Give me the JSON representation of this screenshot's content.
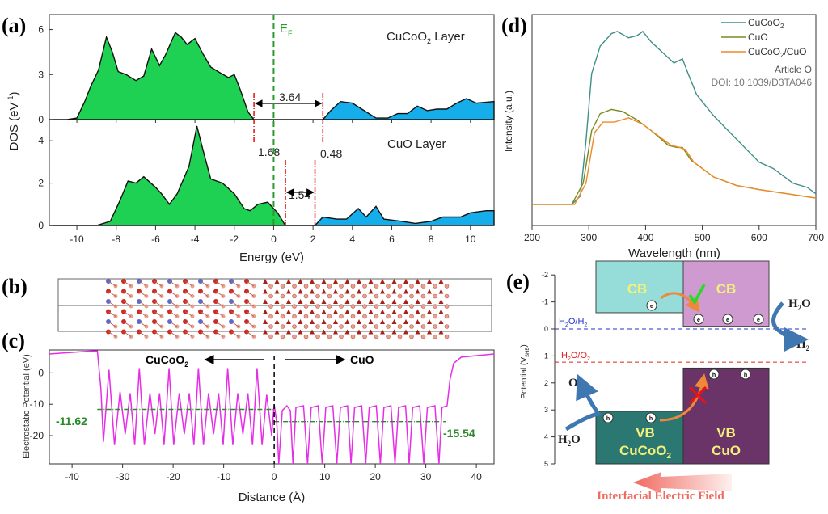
{
  "panel_labels": {
    "a": "(a)",
    "b": "(b)",
    "c": "(c)",
    "d": "(d)",
    "e": "(e)"
  },
  "watermark": {
    "line1": "Article O",
    "line2": "DOI: 10.1039/D3TA046"
  },
  "chart_data": [
    {
      "id": "a",
      "type": "area",
      "xlabel": "Energy (eV)",
      "ylabel": "DOS (eV",
      "ylabel_sup": "-1",
      "ylabel_end": ")",
      "xlim": [
        -11.4,
        11.2
      ],
      "xticks": [
        -10,
        -8,
        -6,
        -4,
        -2,
        0,
        2,
        4,
        6,
        8,
        10
      ],
      "fermi_label": "E",
      "fermi_sub": "F",
      "colors": {
        "valence": "#1fd152",
        "conduction": "#16aeea",
        "fermi": "#2a9a2a",
        "gap_marker": "#e0201e"
      },
      "panels": [
        {
          "name": "CuCoO",
          "name_sub": "2",
          "name_end": " Layer",
          "ylim": [
            0,
            7
          ],
          "yticks": [
            0,
            3,
            6
          ],
          "valence": [
            [
              -11.4,
              0
            ],
            [
              -10.5,
              0
            ],
            [
              -10,
              0.1
            ],
            [
              -9.6,
              1.2
            ],
            [
              -9.3,
              2.2
            ],
            [
              -8.9,
              3.3
            ],
            [
              -8.5,
              5.5
            ],
            [
              -8.2,
              4.5
            ],
            [
              -7.9,
              3.2
            ],
            [
              -7.5,
              3.0
            ],
            [
              -7.0,
              2.6
            ],
            [
              -6.6,
              2.9
            ],
            [
              -6.2,
              4.7
            ],
            [
              -5.8,
              3.6
            ],
            [
              -5.5,
              4.3
            ],
            [
              -5.0,
              5.8
            ],
            [
              -4.7,
              5.5
            ],
            [
              -4.4,
              5.0
            ],
            [
              -4.0,
              5.4
            ],
            [
              -3.6,
              4.4
            ],
            [
              -3.2,
              3.5
            ],
            [
              -2.7,
              3.1
            ],
            [
              -2.3,
              2.8
            ],
            [
              -2.0,
              3.0
            ],
            [
              -1.7,
              2.0
            ],
            [
              -1.3,
              0.5
            ],
            [
              -1.0,
              0
            ],
            [
              2.5,
              0
            ]
          ],
          "conduction": [
            [
              2.5,
              0
            ],
            [
              2.9,
              0.6
            ],
            [
              3.4,
              1.2
            ],
            [
              4.0,
              1.1
            ],
            [
              4.6,
              0.6
            ],
            [
              5.2,
              0.1
            ],
            [
              5.8,
              0.1
            ],
            [
              6.3,
              0.4
            ],
            [
              6.8,
              0.4
            ],
            [
              7.3,
              0.9
            ],
            [
              7.8,
              0.6
            ],
            [
              8.3,
              0.7
            ],
            [
              8.8,
              0.7
            ],
            [
              9.3,
              1.1
            ],
            [
              9.8,
              1.4
            ],
            [
              10.3,
              1.1
            ],
            [
              11.2,
              1.2
            ]
          ],
          "gap": {
            "value": "3.64",
            "from": -1.0,
            "to": 2.5
          }
        },
        {
          "name": "CuO Layer",
          "ylim": [
            0,
            5
          ],
          "yticks": [
            0,
            2,
            4
          ],
          "valence": [
            [
              -11.4,
              0
            ],
            [
              -9,
              0
            ],
            [
              -8.3,
              0.2
            ],
            [
              -7.8,
              1.2
            ],
            [
              -7.4,
              2.1
            ],
            [
              -7.0,
              2.0
            ],
            [
              -6.6,
              2.3
            ],
            [
              -6.0,
              1.8
            ],
            [
              -5.7,
              1.5
            ],
            [
              -5.3,
              1.0
            ],
            [
              -4.9,
              1.5
            ],
            [
              -4.3,
              2.8
            ],
            [
              -3.9,
              4.7
            ],
            [
              -3.6,
              3.6
            ],
            [
              -3.2,
              2.2
            ],
            [
              -2.6,
              2.0
            ],
            [
              -2.0,
              1.5
            ],
            [
              -1.5,
              0.8
            ],
            [
              -1.2,
              0.7
            ],
            [
              -0.8,
              1.0
            ],
            [
              -0.3,
              1.1
            ],
            [
              0.2,
              0.6
            ],
            [
              0.6,
              0
            ],
            [
              2.1,
              0
            ]
          ],
          "conduction": [
            [
              2.1,
              0
            ],
            [
              2.5,
              0.4
            ],
            [
              3.2,
              0.3
            ],
            [
              3.7,
              0.3
            ],
            [
              4.3,
              0.8
            ],
            [
              4.7,
              0.4
            ],
            [
              5.2,
              0.9
            ],
            [
              5.6,
              0.3
            ],
            [
              6.5,
              0.2
            ],
            [
              7.2,
              0.1
            ],
            [
              8,
              0.2
            ],
            [
              8.6,
              0.4
            ],
            [
              9.5,
              0.4
            ],
            [
              10,
              0.6
            ],
            [
              10.8,
              0.7
            ],
            [
              11.2,
              0.7
            ]
          ],
          "gap": {
            "value": "1.54",
            "from": 0.6,
            "to": 2.1
          }
        }
      ],
      "offsets": [
        {
          "value": "1.68"
        },
        {
          "value": "0.48"
        }
      ]
    },
    {
      "id": "c",
      "type": "line",
      "xlabel": "Distance (Å)",
      "ylabel": "Electrostatic Potential (eV)",
      "xlim": [
        -44.5,
        43.5
      ],
      "ylim": [
        -29,
        7.3
      ],
      "xticks": [
        -40,
        -30,
        -20,
        -10,
        0,
        10,
        20,
        30,
        40
      ],
      "yticks": [
        0,
        -10,
        -20
      ],
      "color": "#e62ee6",
      "left_label": "CuCoO",
      "left_sub": "2",
      "right_label": "CuO",
      "averages": [
        {
          "value": -11.62,
          "label": "-11.62",
          "from": -35,
          "to": 0
        },
        {
          "value": -15.54,
          "label": "-15.54",
          "from": 0,
          "to": 34
        }
      ],
      "series": [
        [
          -44.5,
          6
        ],
        [
          -36,
          7
        ],
        [
          -35,
          7
        ],
        [
          -34.3,
          -5
        ],
        [
          -33.8,
          -22
        ],
        [
          -32.7,
          1
        ],
        [
          -31.6,
          -23
        ],
        [
          -30.5,
          -6
        ],
        [
          -29.5,
          -19.5
        ],
        [
          -28.5,
          -6.5
        ],
        [
          -27.6,
          -23
        ],
        [
          -26.7,
          1.5
        ],
        [
          -25.7,
          -23
        ],
        [
          -24.6,
          -6.5
        ],
        [
          -23.6,
          -19.5
        ],
        [
          -22.7,
          -6.5
        ],
        [
          -21.8,
          -23
        ],
        [
          -20.8,
          1.5
        ],
        [
          -19.9,
          -23
        ],
        [
          -18.8,
          -6.5
        ],
        [
          -17.8,
          -19.5
        ],
        [
          -16.8,
          -6.5
        ],
        [
          -15.9,
          -23
        ],
        [
          -15,
          1.5
        ],
        [
          -14,
          -23
        ],
        [
          -13,
          -6.5
        ],
        [
          -12,
          -19.5
        ],
        [
          -11,
          -6.5
        ],
        [
          -10.1,
          -23
        ],
        [
          -9.2,
          1.5
        ],
        [
          -8.2,
          -23
        ],
        [
          -7.2,
          -6.5
        ],
        [
          -6.2,
          -19.5
        ],
        [
          -5.2,
          -6.5
        ],
        [
          -4.3,
          -23
        ],
        [
          -3.4,
          1.5
        ],
        [
          -2.4,
          -23
        ],
        [
          -1.5,
          -7
        ],
        [
          -0.5,
          -20
        ],
        [
          0,
          -10
        ],
        [
          0.5,
          -16
        ],
        [
          0.9,
          -29
        ],
        [
          1.6,
          -12
        ],
        [
          2.5,
          -10.5
        ],
        [
          3.2,
          -12
        ],
        [
          3.7,
          -29
        ],
        [
          4.3,
          -11
        ],
        [
          5.8,
          -10.5
        ],
        [
          6.6,
          -29
        ],
        [
          7.3,
          -11
        ],
        [
          8.7,
          -10.5
        ],
        [
          9.5,
          -29
        ],
        [
          10.2,
          -11
        ],
        [
          11.6,
          -10.5
        ],
        [
          12.4,
          -29
        ],
        [
          13.1,
          -11
        ],
        [
          14.5,
          -10.5
        ],
        [
          15.2,
          -29
        ],
        [
          15.9,
          -11
        ],
        [
          17.3,
          -10.5
        ],
        [
          18.1,
          -29
        ],
        [
          18.8,
          -11
        ],
        [
          20.2,
          -10.5
        ],
        [
          21,
          -29
        ],
        [
          21.7,
          -11
        ],
        [
          23.1,
          -10.5
        ],
        [
          23.9,
          -29
        ],
        [
          24.6,
          -11
        ],
        [
          26,
          -10.5
        ],
        [
          26.7,
          -29
        ],
        [
          27.4,
          -11
        ],
        [
          28.8,
          -10.5
        ],
        [
          29.6,
          -29
        ],
        [
          30.3,
          -11
        ],
        [
          31.8,
          -10.5
        ],
        [
          32.6,
          -29
        ],
        [
          33.2,
          -11
        ],
        [
          34.2,
          -10.5
        ],
        [
          34.8,
          -2
        ],
        [
          35.5,
          3
        ],
        [
          37,
          5
        ],
        [
          43.5,
          6
        ]
      ]
    },
    {
      "id": "d",
      "type": "line",
      "xlabel": "Wavelength (nm)",
      "ylabel": "Intensity (a.u.)",
      "xlim": [
        200,
        700
      ],
      "ylim": [
        0,
        100
      ],
      "xticks": [
        200,
        300,
        400,
        500,
        600,
        700
      ],
      "legend": "top-right",
      "series": [
        {
          "name": "CuCoO",
          "name_sub": "2",
          "color": "#3d8f8a",
          "points": [
            [
              200,
              10
            ],
            [
              270,
              10
            ],
            [
              285,
              14
            ],
            [
              295,
              40
            ],
            [
              305,
              72
            ],
            [
              320,
              85
            ],
            [
              340,
              91
            ],
            [
              350,
              92
            ],
            [
              370,
              89
            ],
            [
              385,
              90
            ],
            [
              395,
              92
            ],
            [
              410,
              87
            ],
            [
              430,
              82
            ],
            [
              450,
              77
            ],
            [
              465,
              79
            ],
            [
              475,
              72
            ],
            [
              490,
              62
            ],
            [
              520,
              52
            ],
            [
              560,
              41
            ],
            [
              600,
              30
            ],
            [
              625,
              27
            ],
            [
              660,
              20
            ],
            [
              685,
              18
            ],
            [
              700,
              15
            ]
          ]
        },
        {
          "name": "CuO",
          "color": "#7a8a1e",
          "points": [
            [
              200,
              10
            ],
            [
              270,
              10
            ],
            [
              290,
              20
            ],
            [
              305,
              45
            ],
            [
              320,
              53
            ],
            [
              340,
              55
            ],
            [
              360,
              54
            ],
            [
              385,
              50
            ],
            [
              410,
              45
            ],
            [
              440,
              38
            ],
            [
              455,
              37
            ],
            [
              465,
              37
            ],
            [
              480,
              31
            ],
            [
              520,
              23
            ],
            [
              560,
              19
            ],
            [
              600,
              17
            ],
            [
              650,
              15
            ],
            [
              700,
              13
            ]
          ]
        },
        {
          "name": "CuCoO",
          "name_sub": "2",
          "name_end": "/CuO",
          "color": "#ee8a2a",
          "points": [
            [
              200,
              10
            ],
            [
              275,
              10
            ],
            [
              295,
              20
            ],
            [
              310,
              44
            ],
            [
              325,
              49
            ],
            [
              345,
              49
            ],
            [
              370,
              51
            ],
            [
              395,
              48
            ],
            [
              420,
              43
            ],
            [
              445,
              38
            ],
            [
              460,
              37
            ],
            [
              470,
              36
            ],
            [
              485,
              30
            ],
            [
              520,
              23
            ],
            [
              560,
              19
            ],
            [
              600,
              17
            ],
            [
              650,
              15
            ],
            [
              700,
              13
            ]
          ]
        }
      ]
    }
  ],
  "band_diagram": {
    "ylabel": "Potential (V",
    "ylabel_sub": "SHE",
    "ylabel_end": ")",
    "yticks": [
      -2,
      -1,
      0,
      1,
      2,
      3,
      4,
      5
    ],
    "cb_label": "CB",
    "vb_label": "VB",
    "cucoo2_label": "CuCoO",
    "cucoo2_sub": "2",
    "cuo_label": "CuO",
    "h2o_h2": "H",
    "h2o_h2_mid": "O/H",
    "h2o_h2_sub": "2",
    "h2o_o2": "H",
    "h2o_o2_mid": "O/O",
    "h2o_o2_sub": "2",
    "h2o": "H",
    "h2o_end": "O",
    "h2": "H",
    "o2": "O",
    "sub2": "2",
    "electron": "e",
    "hole": "h",
    "field_label": "Interfacial Electric Field",
    "levels": {
      "cucoo2_cb": -0.6,
      "cuo_cb": -0.1,
      "cucoo2_vb": 3.05,
      "cuo_vb": 1.45,
      "h2o_h2": 0,
      "h2o_o2": 1.23
    },
    "colors": {
      "cucoo2_cb": "#96dcd8",
      "cuo_cb": "#cf9ad0",
      "cucoo2_vb": "#2b7771",
      "cuo_vb": "#6a3468",
      "band_text": "#f2f07a",
      "arrow": "#3f78b0",
      "transfer": "#f0883a",
      "field": "#f06a60",
      "check": "#22dd22",
      "cross": "#ee1111"
    }
  }
}
